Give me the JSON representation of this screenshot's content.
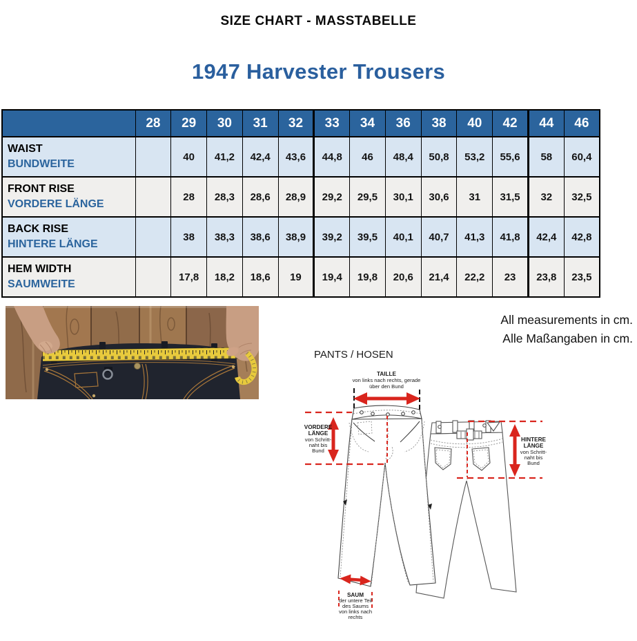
{
  "header": {
    "title": "SIZE CHART - MASSTABELLE",
    "product": "1947 Harvester Trousers"
  },
  "table": {
    "sizes": [
      "28",
      "29",
      "30",
      "31",
      "32",
      "33",
      "34",
      "36",
      "38",
      "40",
      "42",
      "44",
      "46"
    ],
    "rows": [
      {
        "label_en": "WAIST",
        "label_de": "BUNDWEITE",
        "values": [
          "",
          "40",
          "41,2",
          "42,4",
          "43,6",
          "44,8",
          "46",
          "48,4",
          "50,8",
          "53,2",
          "55,6",
          "58",
          "60,4"
        ]
      },
      {
        "label_en": "FRONT RISE",
        "label_de": "VORDERE LÄNGE",
        "values": [
          "",
          "28",
          "28,3",
          "28,6",
          "28,9",
          "29,2",
          "29,5",
          "30,1",
          "30,6",
          "31",
          "31,5",
          "32",
          "32,5"
        ]
      },
      {
        "label_en": "BACK RISE",
        "label_de": "HINTERE LÄNGE",
        "values": [
          "",
          "38",
          "38,3",
          "38,6",
          "38,9",
          "39,2",
          "39,5",
          "40,1",
          "40,7",
          "41,3",
          "41,8",
          "42,4",
          "42,8"
        ]
      },
      {
        "label_en": "HEM WIDTH",
        "label_de": "SAUMWEITE",
        "values": [
          "",
          "17,8",
          "18,2",
          "18,6",
          "19",
          "19,4",
          "19,8",
          "20,6",
          "21,4",
          "22,2",
          "23",
          "23,8",
          "23,5"
        ]
      }
    ]
  },
  "notes": {
    "en": "All measurements in cm.",
    "de": "Alle Maßangaben in cm."
  },
  "diagram": {
    "section_label": "PANTS / HOSEN",
    "taille": {
      "title": "TAILLE",
      "line1": "von links nach rechts, gerade",
      "line2": "über den Bund"
    },
    "vordere": {
      "line1": "VORDERE",
      "line2": "LÄNGE",
      "line3": "von Schritt-",
      "line4": "naht bis",
      "line5": "Bund"
    },
    "hintere": {
      "line1": "HINTERE",
      "line2": "LÄNGE",
      "line3": "von Schritt-",
      "line4": "naht bis",
      "line5": "Bund"
    },
    "saum": {
      "line1": "SAUM",
      "line2": "der untere Teil",
      "line3": "des Saums",
      "line4": "von links nach",
      "line5": "rechts"
    }
  },
  "colors": {
    "accent_blue": "#2a5f9e",
    "table_header_bg": "#2b649d",
    "row_blue": "#d8e5f2",
    "row_gray": "#f0efed",
    "annotation_red": "#d9251d",
    "tape_yellow": "#e8ca3d"
  }
}
